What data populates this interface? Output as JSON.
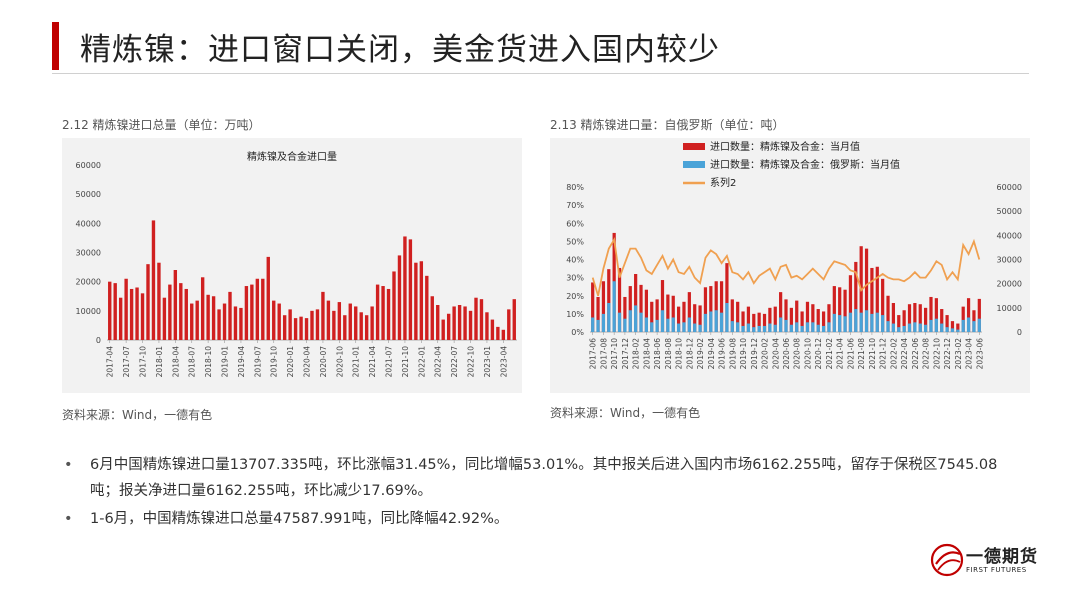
{
  "page": {
    "title": "精炼镍：进口窗口关闭，美金货进入国内较少"
  },
  "left_chart": {
    "caption": "2.12 精炼镍进口总量（单位：万吨）",
    "source": "资料来源：Wind，一德有色"
  },
  "right_chart": {
    "caption": "2.13 精炼镍进口量：自俄罗斯（单位：吨）",
    "source": "资料来源：Wind，一德有色"
  },
  "bullets": [
    "6月中国精炼镍进口量13707.335吨，环比涨幅31.45%，同比增幅53.01%。其中报关后进入国内市场6162.255吨，留存于保税区7545.08吨；报关净进口量6162.255吨，环比减少17.69%。",
    "1-6月，中国精炼镍进口总量47587.991吨，同比降幅42.92%。"
  ],
  "logo": {
    "name_cn": "一德期货",
    "name_en": "FIRST FUTURES"
  },
  "colors": {
    "accent": "#c00000",
    "bar_red": "#d02020",
    "bar_blue": "#4aa3d8",
    "line_orange": "#f0a050",
    "panel_bg": "#f2f2f2"
  },
  "chart_data": [
    {
      "type": "bar",
      "title": "精炼镍及合金进口量",
      "ylim": [
        0,
        60000
      ],
      "yticks": [
        0,
        10000,
        20000,
        30000,
        40000,
        50000,
        60000
      ],
      "x_tick_labels": [
        "2017-04",
        "2017-07",
        "2017-10",
        "2018-01",
        "2018-04",
        "2018-07",
        "2018-10",
        "2019-01",
        "2019-04",
        "2019-07",
        "2019-10",
        "2020-01",
        "2020-04",
        "2020-07",
        "2020-10",
        "2021-01",
        "2021-04",
        "2021-07",
        "2021-10",
        "2022-01",
        "2022-04",
        "2022-07",
        "2022-10",
        "2023-01",
        "2023-04"
      ],
      "x_start": "2017-04",
      "x_end": "2023-06",
      "series": [
        {
          "values": [
            20000,
            19500,
            14500,
            21000,
            17500,
            18000,
            16000,
            26000,
            41000,
            26500,
            14500,
            19000,
            24000,
            19500,
            17500,
            12500,
            13500,
            21500,
            15500,
            15000,
            10500,
            12500,
            16500,
            11500,
            11000,
            18500,
            19000,
            21000,
            21000,
            28500,
            13500,
            12500,
            8500,
            10500,
            7500,
            8000,
            7500,
            10000,
            10500,
            16500,
            13500,
            10000,
            13000,
            8500,
            12500,
            11500,
            9500,
            8500,
            11500,
            19000,
            18500,
            17500,
            23500,
            29000,
            35500,
            34500,
            26500,
            27000,
            22000,
            15000,
            12000,
            7000,
            9000,
            11500,
            12000,
            11500,
            10000,
            14500,
            14000,
            9500,
            7000,
            4500,
            3500,
            10500,
            14000
          ]
        }
      ]
    },
    {
      "type": "bar",
      "ylim_left": [
        0,
        0.8
      ],
      "ylim_right": [
        0,
        60000
      ],
      "yticks_left": [
        "0%",
        "10%",
        "20%",
        "30%",
        "40%",
        "50%",
        "60%",
        "70%",
        "80%"
      ],
      "yticks_right": [
        0,
        10000,
        20000,
        30000,
        40000,
        50000,
        60000
      ],
      "x_tick_labels": [
        "2017-06",
        "2017-08",
        "2017-10",
        "2017-12",
        "2018-02",
        "2018-04",
        "2018-06",
        "2018-08",
        "2018-10",
        "2018-12",
        "2019-02",
        "2019-04",
        "2019-06",
        "2019-08",
        "2019-10",
        "2019-12",
        "2020-02",
        "2020-04",
        "2020-06",
        "2020-08",
        "2020-10",
        "2020-12",
        "2021-02",
        "2021-04",
        "2021-06",
        "2021-08",
        "2021-10",
        "2021-12",
        "2022-02",
        "2022-04",
        "2022-06",
        "2022-08",
        "2022-10",
        "2022-12",
        "2023-02",
        "2023-04",
        "2023-06"
      ],
      "x_start": "2017-06",
      "x_end": "2023-06",
      "legend_placement": "top-left",
      "series": [
        {
          "name": "进口数量：精炼镍及合金：当月值",
          "axis": "right",
          "values": [
            20500,
            14500,
            21000,
            26000,
            41000,
            26500,
            14500,
            19000,
            24000,
            19500,
            17500,
            12500,
            13500,
            21500,
            15500,
            15000,
            10500,
            12500,
            16500,
            11500,
            11000,
            18500,
            19000,
            21000,
            21000,
            28500,
            13500,
            12500,
            8500,
            10500,
            7500,
            8000,
            7500,
            10000,
            10500,
            16500,
            13500,
            10000,
            13000,
            8500,
            12500,
            11500,
            9500,
            8500,
            11500,
            19000,
            18500,
            17500,
            23500,
            29000,
            35500,
            34500,
            26500,
            27000,
            22000,
            15000,
            12000,
            7000,
            9000,
            11500,
            12000,
            11500,
            10000,
            14500,
            14000,
            9500,
            7000,
            4500,
            3500,
            10500,
            14000,
            9000,
            13700
          ]
        },
        {
          "name": "进口数量：精炼镍及合金：俄罗斯：当月值",
          "axis": "right",
          "values": [
            6000,
            5000,
            7500,
            12000,
            21000,
            8000,
            5500,
            9000,
            11000,
            8000,
            6000,
            4000,
            5000,
            9000,
            5500,
            6000,
            3500,
            4000,
            6000,
            3500,
            3000,
            7500,
            8500,
            9000,
            8000,
            12000,
            4500,
            4000,
            2500,
            3500,
            2000,
            2500,
            2500,
            3500,
            3000,
            6000,
            5000,
            3000,
            4000,
            2500,
            4000,
            4000,
            3000,
            2500,
            4000,
            7500,
            7000,
            6500,
            8000,
            9500,
            8000,
            9000,
            7500,
            8000,
            7000,
            4500,
            3500,
            2000,
            2500,
            3500,
            4000,
            3500,
            3000,
            5000,
            5500,
            3500,
            2000,
            1500,
            1000,
            5000,
            6000,
            4500,
            5500
          ]
        },
        {
          "name": "系列2",
          "axis": "left",
          "values": [
            0.3,
            0.2,
            0.35,
            0.46,
            0.51,
            0.3,
            0.38,
            0.46,
            0.46,
            0.41,
            0.34,
            0.32,
            0.37,
            0.42,
            0.35,
            0.4,
            0.33,
            0.32,
            0.36,
            0.3,
            0.27,
            0.41,
            0.45,
            0.43,
            0.38,
            0.42,
            0.33,
            0.32,
            0.29,
            0.33,
            0.27,
            0.31,
            0.33,
            0.35,
            0.29,
            0.36,
            0.37,
            0.3,
            0.31,
            0.29,
            0.32,
            0.35,
            0.32,
            0.29,
            0.35,
            0.39,
            0.38,
            0.37,
            0.34,
            0.33,
            0.23,
            0.26,
            0.28,
            0.3,
            0.32,
            0.3,
            0.29,
            0.29,
            0.28,
            0.3,
            0.33,
            0.3,
            0.3,
            0.34,
            0.39,
            0.37,
            0.29,
            0.33,
            0.29,
            0.48,
            0.43,
            0.5,
            0.4
          ]
        }
      ]
    }
  ]
}
